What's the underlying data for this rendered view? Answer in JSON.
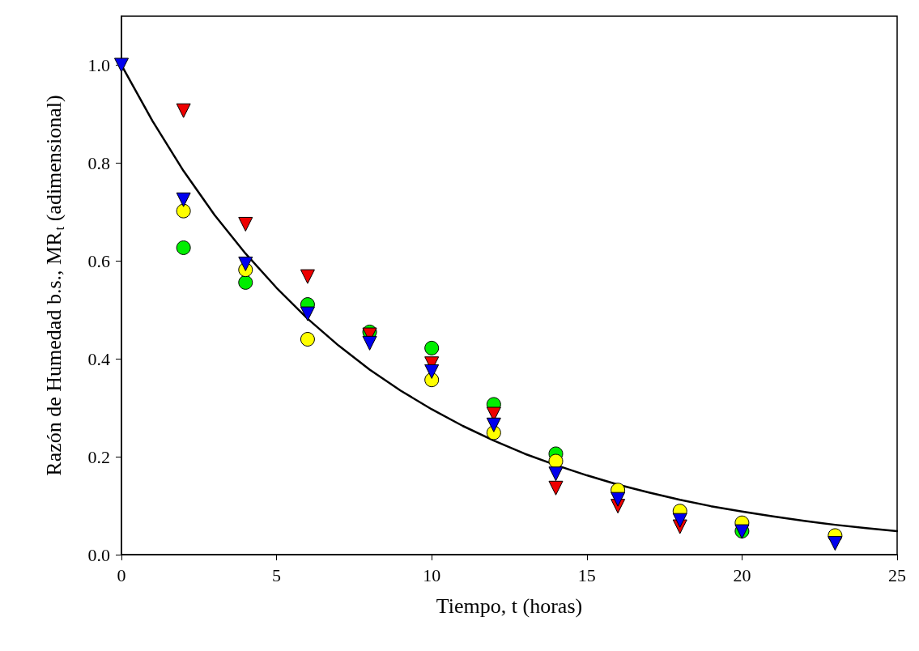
{
  "chart_data": {
    "type": "scatter",
    "xlabel": "Tiempo, t (horas)",
    "ylabel": "Razón de Humedad b.s., MR$_{t}$ (adimensional)",
    "x": [
      0,
      2,
      4,
      6,
      8,
      10,
      12,
      14,
      16,
      18,
      20,
      23
    ],
    "series": [
      {
        "color": "#00ee00",
        "marker": "circle",
        "values": [
          null,
          0.627,
          0.556,
          0.511,
          0.455,
          0.422,
          0.307,
          0.206,
          null,
          null,
          0.048,
          null
        ]
      },
      {
        "color": "#ffff00",
        "marker": "circle",
        "values": [
          null,
          0.702,
          0.582,
          0.44,
          null,
          0.357,
          0.249,
          0.191,
          0.132,
          0.089,
          0.065,
          0.039
        ]
      },
      {
        "color": "#ee0000",
        "marker": "triangle",
        "values": [
          null,
          0.907,
          0.675,
          0.568,
          0.449,
          0.39,
          0.287,
          0.136,
          0.099,
          0.057,
          null,
          null
        ]
      },
      {
        "color": "#0000ee",
        "marker": "triangle",
        "values": [
          1.0,
          0.725,
          0.594,
          0.492,
          0.432,
          0.374,
          0.265,
          0.165,
          0.113,
          0.07,
          0.047,
          0.023
        ]
      },
      {
        "type": "line",
        "color": "#000000",
        "marker": "none",
        "x": [
          0,
          1,
          2,
          3,
          4,
          5,
          6,
          7,
          8,
          9,
          10,
          11,
          12,
          13,
          14,
          15,
          16,
          17,
          18,
          19,
          20,
          21,
          22,
          23,
          24,
          25
        ],
        "values": [
          1.0,
          0.886,
          0.784,
          0.694,
          0.615,
          0.545,
          0.482,
          0.427,
          0.378,
          0.335,
          0.297,
          0.263,
          0.233,
          0.206,
          0.183,
          0.162,
          0.143,
          0.127,
          0.112,
          0.099,
          0.088,
          0.078,
          0.069,
          0.061,
          0.054,
          0.048
        ]
      }
    ],
    "xlim": [
      0,
      25
    ],
    "xticks": [
      0,
      5,
      10,
      15,
      20,
      25
    ],
    "ylim": [
      0,
      1.1
    ],
    "yticks": [
      {
        "value": 0,
        "label": "0.0"
      },
      {
        "value": 0.2,
        "label": "0.2"
      },
      {
        "value": 0.4,
        "label": "0.4"
      },
      {
        "value": 0.6,
        "label": "0.6"
      },
      {
        "value": 0.8,
        "label": "0.8"
      },
      {
        "value": 1.0,
        "label": "1.0"
      }
    ],
    "grid": false
  }
}
